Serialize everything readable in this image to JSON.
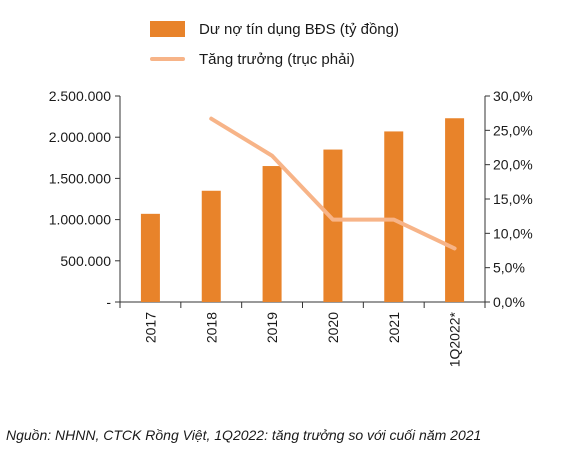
{
  "chart_data": {
    "type": "bar",
    "title": "",
    "categories": [
      "2017",
      "2018",
      "2019",
      "2020",
      "2021",
      "1Q2022*"
    ],
    "series": [
      {
        "name": "Dư nợ tín dụng BĐS (tỷ đồng)",
        "type": "bar",
        "axis": "left",
        "color": "#E8832A",
        "values": [
          1070000,
          1350000,
          1650000,
          1850000,
          2070000,
          2230000
        ]
      },
      {
        "name": "Tăng trưởng (trục phải)",
        "type": "line",
        "axis": "right",
        "color": "#F7B488",
        "values": [
          null,
          26.7,
          21.3,
          12.0,
          12.0,
          7.8
        ]
      }
    ],
    "y_left": {
      "range": [
        0,
        2500000
      ],
      "ticks": [
        0,
        500000,
        1000000,
        1500000,
        2000000,
        2500000
      ],
      "tick_labels": [
        "-",
        "500.000",
        "1.000.000",
        "1.500.000",
        "2.000.000",
        "2.500.000"
      ]
    },
    "y_right": {
      "range": [
        0,
        30
      ],
      "ticks": [
        0,
        5,
        10,
        15,
        20,
        25,
        30
      ],
      "tick_labels": [
        "0,0%",
        "5,0%",
        "10,0%",
        "15,0%",
        "20,0%",
        "25,0%",
        "30,0%"
      ]
    },
    "grid": false,
    "legend_position": "top-left"
  },
  "source_note": "Nguồn:  NHNN, CTCK Rồng Việt, 1Q2022: tăng trưởng so với cuối năm 2021"
}
